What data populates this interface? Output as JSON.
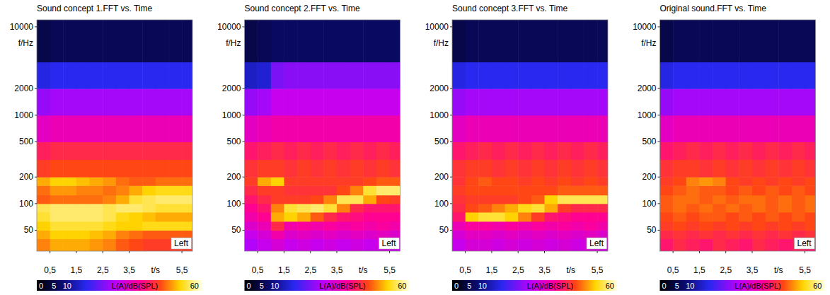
{
  "chart_data": [
    {
      "type": "heatmap",
      "title": "Sound concept 1.FFT vs. Time",
      "xlabel": "t/s",
      "ylabel": "f/Hz",
      "annotation": "Left",
      "log": "y",
      "grid": false,
      "xlim": [
        0,
        5.9
      ],
      "ylim": [
        29,
        12000
      ],
      "xticks": [
        {
          "value": 0.5,
          "label": "0,5"
        },
        {
          "value": 1.5,
          "label": "1,5"
        },
        {
          "value": 2.5,
          "label": "2,5"
        },
        {
          "value": 3.5,
          "label": "3,5"
        },
        {
          "value": 5.5,
          "label": "5,5"
        }
      ],
      "yticks": [
        50,
        100,
        200,
        500,
        1000,
        2000,
        10000
      ],
      "x_bins": [
        0,
        0.5,
        1,
        1.5,
        2,
        2.5,
        3,
        3.5,
        4,
        4.5,
        5,
        5.5,
        6
      ],
      "y_bins": [
        29,
        40,
        50,
        63,
        80,
        100,
        125,
        160,
        200,
        315,
        500,
        1000,
        2000,
        4000,
        12000
      ],
      "cells": [
        [
          48,
          50,
          50,
          50,
          49,
          48,
          46,
          45,
          44,
          44,
          44,
          44
        ],
        [
          50,
          52,
          52,
          52,
          51,
          50,
          48,
          47,
          46,
          46,
          46,
          46
        ],
        [
          52,
          54,
          54,
          54,
          54,
          53,
          52,
          52,
          53,
          53,
          53,
          53
        ],
        [
          54,
          56,
          56,
          56,
          56,
          55,
          53,
          52,
          51,
          50,
          50,
          50
        ],
        [
          55,
          56,
          56,
          56,
          56,
          55,
          56,
          56,
          55,
          54,
          54,
          54
        ],
        [
          46,
          47,
          47,
          47,
          47,
          48,
          50,
          54,
          55,
          56,
          56,
          56
        ],
        [
          47,
          49,
          49,
          48,
          48,
          47,
          48,
          50,
          52,
          53,
          53,
          53
        ],
        [
          50,
          52,
          52,
          51,
          50,
          49,
          47,
          46,
          46,
          47,
          47,
          47
        ],
        [
          44,
          45,
          45,
          45,
          45,
          45,
          45,
          45,
          45,
          45,
          45,
          45
        ],
        [
          41,
          42,
          42,
          42,
          42,
          42,
          42,
          42,
          42,
          42,
          42,
          42
        ],
        [
          34,
          35,
          35,
          35,
          35,
          35,
          35,
          35,
          35,
          35,
          35,
          35
        ],
        [
          26,
          27,
          27,
          27,
          27,
          27,
          27,
          27,
          27,
          27,
          27,
          27
        ],
        [
          17,
          18,
          18,
          18,
          18,
          18,
          18,
          18,
          18,
          18,
          18,
          18
        ],
        [
          6,
          7,
          7,
          7,
          7,
          7,
          7,
          7,
          7,
          7,
          7,
          7
        ]
      ],
      "color_range": [
        0,
        60
      ],
      "color_ticks": [
        0,
        5,
        10,
        60
      ],
      "colorbar_label": "L(A)/dB(SPL)"
    },
    {
      "type": "heatmap",
      "title": "Sound concept 2.FFT vs. Time",
      "xlabel": "t/s",
      "ylabel": "f/Hz",
      "annotation": "Left",
      "log": "y",
      "grid": false,
      "xlim": [
        0,
        5.9
      ],
      "ylim": [
        29,
        12000
      ],
      "xticks": [
        {
          "value": 0.5,
          "label": "0,5"
        },
        {
          "value": 1.5,
          "label": "1,5"
        },
        {
          "value": 2.5,
          "label": "2,5"
        },
        {
          "value": 3.5,
          "label": "3,5"
        },
        {
          "value": 5.5,
          "label": "5,5"
        }
      ],
      "yticks": [
        50,
        100,
        200,
        500,
        1000,
        2000,
        10000
      ],
      "x_bins": [
        0,
        0.5,
        1,
        1.5,
        2,
        2.5,
        3,
        3.5,
        4,
        4.5,
        5,
        5.5,
        6
      ],
      "y_bins": [
        29,
        40,
        50,
        63,
        80,
        100,
        125,
        160,
        200,
        315,
        500,
        1000,
        2000,
        4000,
        12000
      ],
      "cells": [
        [
          28,
          30,
          32,
          30,
          31,
          30,
          31,
          30,
          31,
          30,
          31,
          30
        ],
        [
          30,
          32,
          36,
          33,
          34,
          33,
          34,
          33,
          34,
          33,
          34,
          33
        ],
        [
          33,
          35,
          42,
          36,
          37,
          36,
          37,
          36,
          37,
          36,
          37,
          36
        ],
        [
          36,
          38,
          50,
          52,
          50,
          46,
          42,
          40,
          39,
          38,
          38,
          38
        ],
        [
          38,
          40,
          48,
          54,
          55,
          56,
          54,
          48,
          42,
          40,
          40,
          40
        ],
        [
          40,
          42,
          44,
          44,
          44,
          45,
          48,
          55,
          55,
          50,
          45,
          44
        ],
        [
          42,
          44,
          44,
          43,
          43,
          43,
          43,
          45,
          48,
          54,
          56,
          56
        ],
        [
          44,
          50,
          52,
          44,
          44,
          44,
          44,
          44,
          44,
          45,
          46,
          46
        ],
        [
          43,
          44,
          44,
          43,
          44,
          43,
          44,
          43,
          44,
          43,
          44,
          43
        ],
        [
          40,
          41,
          42,
          41,
          42,
          41,
          42,
          41,
          42,
          41,
          42,
          41
        ],
        [
          34,
          35,
          36,
          36,
          36,
          36,
          36,
          36,
          36,
          36,
          36,
          36
        ],
        [
          26,
          27,
          30,
          30,
          30,
          30,
          30,
          30,
          30,
          30,
          30,
          30
        ],
        [
          15,
          16,
          24,
          25,
          25,
          25,
          25,
          25,
          25,
          25,
          25,
          25
        ],
        [
          6,
          7,
          8,
          8,
          8,
          8,
          8,
          8,
          8,
          8,
          8,
          8
        ]
      ],
      "color_range": [
        0,
        60
      ],
      "color_ticks": [
        0,
        5,
        10,
        60
      ],
      "colorbar_label": "L(A)/dB(SPL)"
    },
    {
      "type": "heatmap",
      "title": "Sound concept 3.FFT vs. Time",
      "xlabel": "t/s",
      "ylabel": "f/Hz",
      "annotation": "Left",
      "log": "y",
      "grid": false,
      "xlim": [
        0,
        5.9
      ],
      "ylim": [
        29,
        12000
      ],
      "xticks": [
        {
          "value": 0.5,
          "label": "0,5"
        },
        {
          "value": 1.5,
          "label": "1,5"
        },
        {
          "value": 2.5,
          "label": "2,5"
        },
        {
          "value": 3.5,
          "label": "3,5"
        },
        {
          "value": 5.5,
          "label": "5,5"
        }
      ],
      "yticks": [
        50,
        100,
        200,
        500,
        1000,
        2000,
        10000
      ],
      "x_bins": [
        0,
        0.5,
        1,
        1.5,
        2,
        2.5,
        3,
        3.5,
        4,
        4.5,
        5,
        5.5,
        6
      ],
      "y_bins": [
        29,
        40,
        50,
        63,
        80,
        100,
        125,
        160,
        200,
        315,
        500,
        1000,
        2000,
        4000,
        12000
      ],
      "cells": [
        [
          30,
          32,
          32,
          31,
          32,
          31,
          32,
          31,
          32,
          31,
          32,
          31
        ],
        [
          32,
          34,
          34,
          33,
          34,
          33,
          34,
          33,
          34,
          33,
          34,
          33
        ],
        [
          35,
          37,
          37,
          36,
          37,
          36,
          37,
          36,
          37,
          36,
          37,
          36
        ],
        [
          40,
          52,
          54,
          54,
          52,
          48,
          44,
          40,
          39,
          38,
          38,
          38
        ],
        [
          42,
          45,
          46,
          48,
          50,
          53,
          54,
          50,
          44,
          42,
          42,
          42
        ],
        [
          43,
          44,
          44,
          44,
          44,
          45,
          46,
          52,
          55,
          55,
          55,
          55
        ],
        [
          44,
          45,
          45,
          45,
          45,
          45,
          45,
          45,
          46,
          46,
          46,
          46
        ],
        [
          43,
          45,
          46,
          45,
          45,
          44,
          45,
          44,
          45,
          44,
          45,
          44
        ],
        [
          43,
          44,
          44,
          43,
          44,
          43,
          44,
          43,
          44,
          43,
          44,
          43
        ],
        [
          40,
          41,
          42,
          41,
          42,
          41,
          42,
          41,
          42,
          41,
          42,
          41
        ],
        [
          34,
          35,
          35,
          35,
          35,
          35,
          35,
          35,
          35,
          35,
          35,
          35
        ],
        [
          26,
          27,
          27,
          27,
          27,
          27,
          27,
          27,
          27,
          27,
          27,
          27
        ],
        [
          17,
          18,
          18,
          18,
          18,
          18,
          18,
          18,
          18,
          18,
          18,
          18
        ],
        [
          6,
          7,
          7,
          7,
          7,
          7,
          7,
          7,
          7,
          7,
          7,
          7
        ]
      ],
      "color_range": [
        0,
        60
      ],
      "color_ticks": [
        0,
        5,
        10,
        60
      ],
      "colorbar_label": "L(A)/dB(SPL)"
    },
    {
      "type": "heatmap",
      "title": "Original sound.FFT vs. Time",
      "xlabel": "t/s",
      "ylabel": "f/Hz",
      "annotation": "Left",
      "log": "y",
      "grid": false,
      "xlim": [
        0,
        5.9
      ],
      "ylim": [
        29,
        12000
      ],
      "xticks": [
        {
          "value": 0.5,
          "label": "0,5"
        },
        {
          "value": 1.5,
          "label": "1,5"
        },
        {
          "value": 2.5,
          "label": "2,5"
        },
        {
          "value": 3.5,
          "label": "3,5"
        },
        {
          "value": 5.5,
          "label": "5,5"
        }
      ],
      "yticks": [
        50,
        100,
        200,
        500,
        1000,
        2000,
        10000
      ],
      "x_bins": [
        0,
        0.5,
        1,
        1.5,
        2,
        2.5,
        3,
        3.5,
        4,
        4.5,
        5,
        5.5,
        6
      ],
      "y_bins": [
        29,
        40,
        50,
        63,
        80,
        100,
        125,
        160,
        200,
        315,
        500,
        1000,
        2000,
        4000,
        12000
      ],
      "cells": [
        [
          40,
          42,
          41,
          40,
          42,
          41,
          40,
          42,
          41,
          40,
          41,
          40
        ],
        [
          42,
          43,
          42,
          43,
          42,
          43,
          42,
          43,
          42,
          43,
          42,
          43
        ],
        [
          44,
          45,
          44,
          45,
          44,
          45,
          44,
          45,
          44,
          45,
          44,
          45
        ],
        [
          45,
          46,
          45,
          46,
          46,
          45,
          46,
          45,
          46,
          45,
          46,
          45
        ],
        [
          46,
          47,
          46,
          47,
          46,
          47,
          46,
          47,
          46,
          47,
          46,
          47
        ],
        [
          46,
          47,
          47,
          46,
          47,
          46,
          47,
          47,
          46,
          47,
          46,
          47
        ],
        [
          45,
          46,
          47,
          46,
          46,
          45,
          46,
          45,
          46,
          45,
          46,
          45
        ],
        [
          44,
          45,
          48,
          49,
          48,
          45,
          44,
          45,
          44,
          45,
          44,
          45
        ],
        [
          43,
          44,
          44,
          43,
          44,
          43,
          44,
          43,
          44,
          43,
          44,
          43
        ],
        [
          40,
          41,
          42,
          41,
          42,
          41,
          42,
          41,
          42,
          41,
          42,
          41
        ],
        [
          34,
          35,
          35,
          35,
          35,
          35,
          35,
          35,
          35,
          35,
          35,
          35
        ],
        [
          26,
          27,
          27,
          27,
          27,
          27,
          27,
          27,
          27,
          27,
          27,
          27
        ],
        [
          17,
          18,
          18,
          18,
          18,
          18,
          18,
          18,
          18,
          18,
          18,
          18
        ],
        [
          6,
          7,
          7,
          7,
          7,
          7,
          7,
          7,
          7,
          7,
          7,
          7
        ]
      ],
      "color_range": [
        0,
        60
      ],
      "color_ticks": [
        0,
        5,
        10,
        60
      ],
      "colorbar_label": "L(A)/dB(SPL)"
    }
  ]
}
